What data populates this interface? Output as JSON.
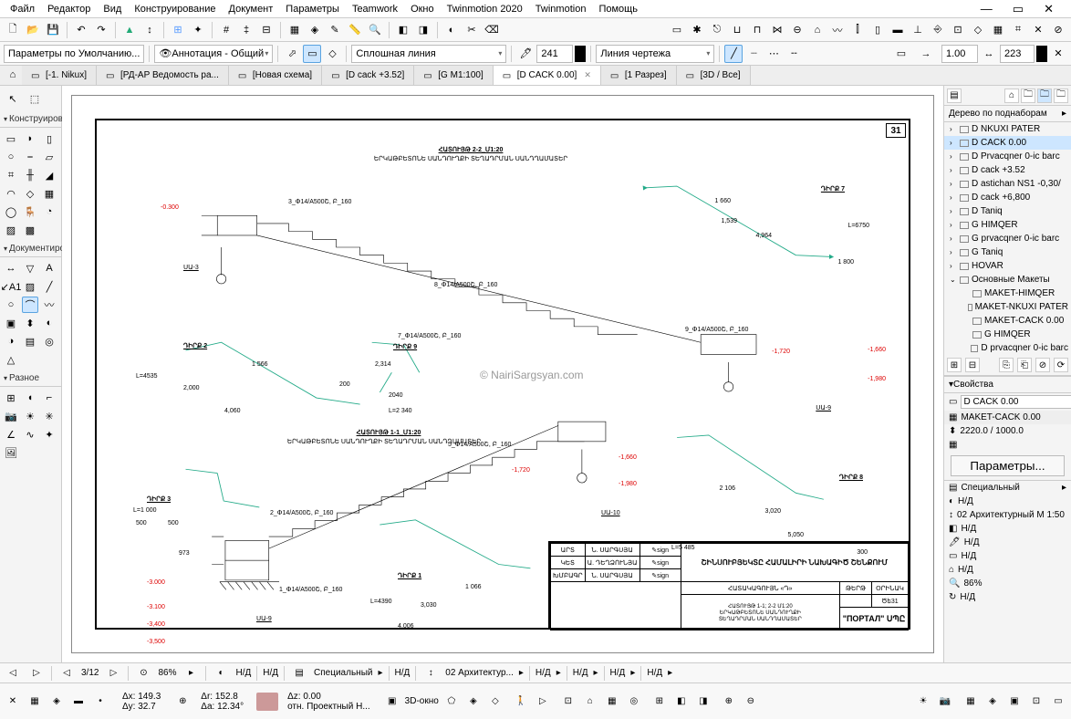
{
  "menu": {
    "items": [
      "Файл",
      "Редактор",
      "Вид",
      "Конструирование",
      "Документ",
      "Параметры",
      "Teamwork",
      "Окно",
      "Twinmotion 2020",
      "Twinmotion",
      "Помощь"
    ]
  },
  "toolbar2": {
    "defaults_label": "Параметры по Умолчанию...",
    "layer": "Аннотация - Общий",
    "linetype": "Сплошная линия",
    "penw": "241",
    "linecat": "Линия чертежа",
    "n1": "1.00",
    "n2": "223"
  },
  "tabs": [
    {
      "t": "[-1. Nikux]",
      "a": false
    },
    {
      "t": "[РД-АР Ведомость ра...",
      "a": false
    },
    {
      "t": "[Новая схема]",
      "a": false
    },
    {
      "t": "[D cack +3.52]",
      "a": false
    },
    {
      "t": "[G M1:100]",
      "a": false
    },
    {
      "t": "[D CACK 0.00]",
      "a": true
    },
    {
      "t": "[1 Разрез]",
      "a": false
    },
    {
      "t": "[3D / Все]",
      "a": false
    }
  ],
  "left": {
    "sections": [
      "Конструирова",
      "Документиро",
      "Разное"
    ]
  },
  "right": {
    "tree_title": "Дерево по поднаборам",
    "items": [
      {
        "t": "D NKUXI PATER",
        "lvl": 0,
        "e": ">"
      },
      {
        "t": "D CACK 0.00",
        "lvl": 0,
        "e": ">",
        "sel": true
      },
      {
        "t": "D Prvacqner 0-ic barc",
        "lvl": 0,
        "e": ">"
      },
      {
        "t": "D cack +3.52",
        "lvl": 0,
        "e": ">"
      },
      {
        "t": "D astichan NS1 -0,30/",
        "lvl": 0,
        "e": ">"
      },
      {
        "t": "D cack +6,800",
        "lvl": 0,
        "e": ">"
      },
      {
        "t": "D Taniq",
        "lvl": 0,
        "e": ">"
      },
      {
        "t": "G HIMQER",
        "lvl": 0,
        "e": ">"
      },
      {
        "t": "G prvacqner 0-ic barc",
        "lvl": 0,
        "e": ">"
      },
      {
        "t": "G Taniq",
        "lvl": 0,
        "e": ">"
      },
      {
        "t": "HOVAR",
        "lvl": 0,
        "e": ">"
      },
      {
        "t": "Основные Макеты",
        "lvl": 0,
        "e": "v"
      },
      {
        "t": "MAKET-HIMQER",
        "lvl": 1
      },
      {
        "t": "MAKET-NKUXI PATER",
        "lvl": 1
      },
      {
        "t": "MAKET-CACK 0.00",
        "lvl": 1
      },
      {
        "t": "G HIMQER",
        "lvl": 1
      },
      {
        "t": "D prvacqner 0-ic barc",
        "lvl": 1
      }
    ],
    "props_title": "Свойства",
    "prop1": "D CACK 0.00",
    "prop2": "MAKET-CACK 0.00",
    "prop3": "2220.0 / 1000.0",
    "params_btn": "Параметры...",
    "special": "Специальный",
    "na": "Н/Д",
    "arch_scale": "02 Архитектурный М 1:50",
    "zoom_pct": "86%"
  },
  "bottom": {
    "page": "3/12",
    "zoom": "86%",
    "na": "Н/Д",
    "special": "Специальный",
    "arch": "02 Архитектур...",
    "zoomNull": "0.00"
  },
  "status": {
    "dx": "Δx: 149.3",
    "dy": "Δy: 32.7",
    "dr": "Δr: 152.8",
    "da": "Δa: 12.34°",
    "dz": "Δz: 0.00",
    "rel": "отн. Проектный Н...",
    "d3": "3D-окно"
  },
  "drawing": {
    "sheet_num": "31",
    "watermark": "© NairiSargsyan.com",
    "title1": "ՀԱՏՈՒՅԹ 2-2_Մ1:20",
    "title1b": "ԵՐԿԱԹԲԵՏՈՆԵ ՍԱՆԴՈՒՂՔԻ ՏԵՂԱԴՐՄԱՆ ՍԱՆԴՂԱՄԱՏԵՐ",
    "title2": "ՀԱՏՈՒՅԹ 1-1_Մ1:20",
    "title2b": "ԵՐԿԱԹԲԵՏՈՆԵ ՍԱՆԴՈՒՂՔԻ ՏԵՂԱԴՐՄԱՆ ՍԱՆԴՂԱՄԱՏԵՐ",
    "d2": "ԴԻՐՔ 2",
    "d3": "ԴԻՐՔ 3",
    "d7": "ԴԻՐՔ 7",
    "d8": "ԴԻՐՔ 8",
    "d9": "ԴԻՐՔ 9",
    "d1": "ԴԻՐՔ 1",
    "us3": "ՍԱ-3",
    "us9": "ՍԱ-9",
    "us10": "ՍԱ-10",
    "l6750": "L=6750",
    "l4535": "L=4535",
    "l2340": "L=2 340",
    "l1000": "L=1 000",
    "l5485": "L=5 485",
    "l4390": "L=4390",
    "v1566": "1 566",
    "v2314": "2,314",
    "v2040": "2040",
    "v4060": "4,060",
    "v1660": "1 660",
    "v4964": "4,964",
    "v1800": "1 800",
    "v1539": "1,539",
    "v4920": "4,920",
    "v2106": "2 106",
    "v3020": "3,020",
    "v5050": "5,050",
    "v300": "300",
    "v500": "500",
    "v973": "973",
    "v1066": "1 066",
    "v3030": "3,030",
    "v4006": "4,006",
    "v200": "200",
    "v2000": "2,000",
    "dim1720": "-1,720",
    "dim1980": "-1,980",
    "dim1660": "-1,660",
    "n3000": "-3.000",
    "n3100": "-3.100",
    "n3400": "-3,400",
    "n3500": "-3,500",
    "p0300": "-0.300",
    "r3": "3_Փ14/A500Շ, Բ_160",
    "r7": "7_Փ14/A500Շ, Բ_160",
    "r8": "8_Փ14/A500Շ, Բ_160",
    "r9": "9_Փ14/A500Շ, Բ_160",
    "r1": "1_Փ14/A500Շ, Բ_160",
    "r2": "2_Փ14/A500Շ, Բ_160",
    "r5": "5_Փ14/A500Շ, Բ_160",
    "tb": {
      "h1": "ՇԻՆՍՈՒԲՅԵԿՏԸ ՀԱՄԱԼԻՐԻ ՆԱԽԱԳԻԾ ՇԵՆՔՈՒՄ",
      "h2": "ՀԱՏԱԿԱԳՈՒՅՆ «Դ»",
      "h3": "ՀԱՏՈՒՅԹ 1-1; 2-2  Մ1:20\nԵՐԿԱԹԲԵՏՈՆԵ ՍԱՆԴՈՒՂՔԻ\nՏԵՂԱԴՐՄԱՆ ՍԱՆԴՂԱՄԱՏԵՐ",
      "company": "\"ПОРТАЛ\" ՍՊԸ",
      "sig1": "Ն. ՍԱՐԳՍՅԱ",
      "sig2": "Ա. ԴԵՂՁՈՒՆՅԱ",
      "sig3": "Ն. ՍԱՐԳՍՅԱ",
      "r1l": "ԱՐՏ",
      "r2l": "ԿԵՏ",
      "r3l": "ԽՄԲԱԳՐ",
      "c31": "ԹԵՐԹ",
      "c32": "ՕՐԻՆԱԿ",
      "cnum": "Ծե31"
    }
  }
}
